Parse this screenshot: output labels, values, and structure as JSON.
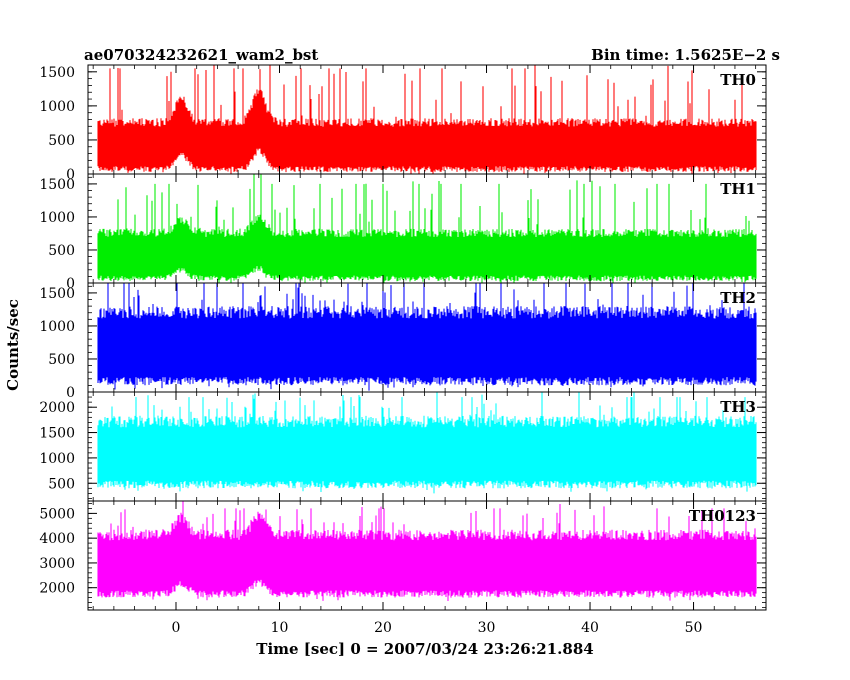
{
  "header": {
    "title": "ae070324232621_wam2_bst",
    "bin_time": "Bin time: 1.5625E−2 s"
  },
  "xlabel": "Time [sec] 0 = 2007/03/24 23:26:21.884",
  "ylabel": "Counts/sec",
  "chart_data": {
    "type": "line",
    "shared_x": {
      "range": [
        -8.5,
        57
      ],
      "ticks": [
        0,
        10,
        20,
        30,
        40,
        50
      ],
      "tick_labels": [
        "0",
        "10",
        "20",
        "30",
        "40",
        "50"
      ],
      "data_range": [
        -7.5,
        56
      ],
      "bin_time": 0.015625
    },
    "panels": [
      {
        "name": "TH0",
        "color": "#ff0000",
        "ylim": [
          0,
          1600
        ],
        "yticks": [
          0,
          500,
          1000,
          1500
        ],
        "ytick_labels": [
          "0",
          "500",
          "1000",
          "1500"
        ],
        "baseline_min": 30,
        "baseline_max": 720,
        "spike_max": 1550,
        "bursts": [
          {
            "t": 0.5,
            "amp": 350
          },
          {
            "t": 8,
            "amp": 450
          }
        ]
      },
      {
        "name": "TH1",
        "color": "#00ee00",
        "ylim": [
          0,
          1650
        ],
        "yticks": [
          0,
          500,
          1000,
          1500
        ],
        "ytick_labels": [
          "0",
          "500",
          "1000",
          "1500"
        ],
        "baseline_min": 30,
        "baseline_max": 720,
        "spike_max": 1500,
        "bursts": [
          {
            "t": 0.5,
            "amp": 200
          },
          {
            "t": 8,
            "amp": 250
          }
        ]
      },
      {
        "name": "TH2",
        "color": "#0000ff",
        "ylim": [
          0,
          1650
        ],
        "yticks": [
          0,
          500,
          1000,
          1500
        ],
        "ytick_labels": [
          "0",
          "500",
          "1000",
          "1500"
        ],
        "baseline_min": 100,
        "baseline_max": 1150,
        "spike_max": 1700,
        "bursts": []
      },
      {
        "name": "TH3",
        "color": "#00ffff",
        "ylim": [
          150,
          2300
        ],
        "yticks": [
          500,
          1000,
          1500,
          2000
        ],
        "ytick_labels": [
          "500",
          "1000",
          "1500",
          "2000"
        ],
        "baseline_min": 400,
        "baseline_max": 1650,
        "spike_max": 2200,
        "bursts": []
      },
      {
        "name": "TH0123",
        "color": "#ff00ff",
        "ylim": [
          1100,
          5500
        ],
        "yticks": [
          2000,
          3000,
          4000,
          5000
        ],
        "ytick_labels": [
          "2000",
          "3000",
          "4000",
          "5000"
        ],
        "baseline_min": 1600,
        "baseline_max": 4000,
        "spike_max": 5200,
        "bursts": [
          {
            "t": 0.5,
            "amp": 700
          },
          {
            "t": 8,
            "amp": 800
          }
        ]
      }
    ]
  }
}
